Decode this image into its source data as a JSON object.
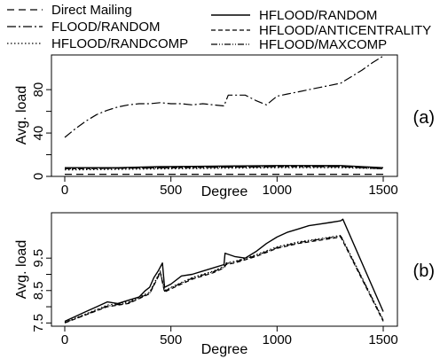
{
  "legend": {
    "entries": [
      {
        "label": "Direct Mailing",
        "dash": "8,5",
        "width": 1.2
      },
      {
        "label": "FLOOD/RANDOM",
        "dash": "10,3,2,3",
        "width": 1.2
      },
      {
        "label": "HFLOOD/RANDCOMP",
        "dash": "1.5,2.5",
        "width": 1.2
      },
      {
        "label": "HFLOOD/RANDOM",
        "dash": "",
        "width": 1.4
      },
      {
        "label": "HFLOOD/ANTICENTRALITY",
        "dash": "5,3",
        "width": 1.2
      },
      {
        "label": "HFLOOD/MAXCOMP",
        "dash": "7,2,1,2,1,2",
        "width": 1.2
      }
    ]
  },
  "chart_data": [
    {
      "type": "line",
      "panel_label": "(a)",
      "xlabel": "Degree",
      "ylabel": "Avg. load",
      "xlim": [
        0,
        1500
      ],
      "ylim": [
        0,
        112
      ],
      "xticks": [
        0,
        500,
        1000,
        1500
      ],
      "yticks": [
        0,
        20,
        40,
        60,
        80
      ],
      "ytick_labels": [
        "0",
        "",
        "40",
        "",
        "80"
      ],
      "grid": false,
      "series": [
        {
          "name": "Direct Mailing",
          "x": [
            0,
            1500
          ],
          "y": [
            2,
            2
          ]
        },
        {
          "name": "FLOOD/RANDOM",
          "x": [
            0,
            50,
            100,
            150,
            200,
            250,
            300,
            350,
            400,
            450,
            500,
            550,
            600,
            650,
            700,
            750,
            770,
            800,
            850,
            900,
            950,
            1000,
            1050,
            1100,
            1150,
            1200,
            1250,
            1300,
            1350,
            1400,
            1450,
            1500
          ],
          "y": [
            36,
            44,
            51,
            57,
            61,
            64,
            66,
            67,
            67,
            68,
            67,
            67,
            66,
            67,
            66,
            65,
            75,
            75,
            75,
            70,
            66,
            74,
            76,
            78,
            80,
            82,
            84,
            86,
            92,
            98,
            105,
            111
          ]
        },
        {
          "name": "HFLOOD/RANDCOMP",
          "x": [
            0,
            500,
            1000,
            1300,
            1500
          ],
          "y": [
            6,
            7,
            8,
            8,
            7
          ]
        },
        {
          "name": "HFLOOD/RANDOM",
          "x": [
            0,
            250,
            450,
            500,
            1000,
            1300,
            1500
          ],
          "y": [
            8,
            8,
            9,
            9,
            10,
            10,
            8
          ]
        },
        {
          "name": "HFLOOD/ANTICENTRALITY",
          "x": [
            0,
            500,
            1000,
            1300,
            1500
          ],
          "y": [
            7,
            8,
            9,
            9,
            7
          ]
        },
        {
          "name": "HFLOOD/MAXCOMP",
          "x": [
            0,
            500,
            1000,
            1300,
            1500
          ],
          "y": [
            7,
            8,
            9,
            9,
            7
          ]
        }
      ]
    },
    {
      "type": "line",
      "panel_label": "(b)",
      "xlabel": "Degree",
      "ylabel": "Avg. load",
      "xlim": [
        0,
        1500
      ],
      "ylim": [
        7.4,
        10.9
      ],
      "xticks": [
        0,
        500,
        1000,
        1500
      ],
      "yticks": [
        7.5,
        8,
        8.5,
        9,
        9.5
      ],
      "ytick_labels": [
        "7.5",
        "",
        "8.5",
        "",
        "9.5"
      ],
      "grid": false,
      "series": [
        {
          "name": "HFLOOD/RANDOM",
          "x": [
            0,
            50,
            100,
            150,
            200,
            250,
            300,
            350,
            380,
            400,
            420,
            440,
            460,
            470,
            500,
            550,
            600,
            650,
            700,
            750,
            755,
            800,
            850,
            900,
            950,
            1000,
            1050,
            1100,
            1150,
            1200,
            1250,
            1300,
            1310,
            1500
          ],
          "y": [
            7.55,
            7.7,
            7.85,
            8.0,
            8.15,
            8.1,
            8.2,
            8.3,
            8.5,
            8.6,
            8.9,
            9.1,
            9.35,
            8.6,
            8.7,
            8.95,
            9.0,
            9.1,
            9.2,
            9.3,
            9.65,
            9.55,
            9.5,
            9.7,
            9.95,
            10.15,
            10.3,
            10.4,
            10.5,
            10.55,
            10.6,
            10.65,
            10.7,
            7.85
          ]
        },
        {
          "name": "HFLOOD/RANDCOMP",
          "x": [
            0,
            100,
            200,
            300,
            400,
            450,
            470,
            500,
            600,
            700,
            750,
            760,
            800,
            900,
            1000,
            1100,
            1200,
            1300,
            1500
          ],
          "y": [
            7.52,
            7.78,
            8.05,
            8.15,
            8.45,
            9.1,
            8.5,
            8.6,
            8.9,
            9.1,
            9.25,
            9.35,
            9.4,
            9.6,
            9.85,
            10.0,
            10.1,
            10.2,
            7.6
          ]
        },
        {
          "name": "HFLOOD/ANTICENTRALITY",
          "x": [
            0,
            100,
            200,
            300,
            400,
            450,
            470,
            500,
            600,
            700,
            750,
            760,
            800,
            900,
            1000,
            1100,
            1200,
            1300,
            1500
          ],
          "y": [
            7.5,
            7.75,
            8.0,
            8.1,
            8.4,
            9.05,
            8.45,
            8.55,
            8.85,
            9.05,
            9.2,
            9.3,
            9.35,
            9.55,
            9.8,
            9.95,
            10.05,
            10.15,
            7.55
          ]
        },
        {
          "name": "HFLOOD/MAXCOMP",
          "x": [
            0,
            100,
            200,
            300,
            400,
            450,
            470,
            500,
            600,
            700,
            750,
            760,
            800,
            900,
            1000,
            1100,
            1200,
            1300,
            1500
          ],
          "y": [
            7.51,
            7.76,
            8.02,
            8.12,
            8.42,
            9.08,
            8.48,
            8.58,
            8.88,
            9.08,
            9.22,
            9.33,
            9.38,
            9.58,
            9.82,
            9.98,
            10.08,
            10.18,
            7.58
          ]
        }
      ]
    }
  ]
}
